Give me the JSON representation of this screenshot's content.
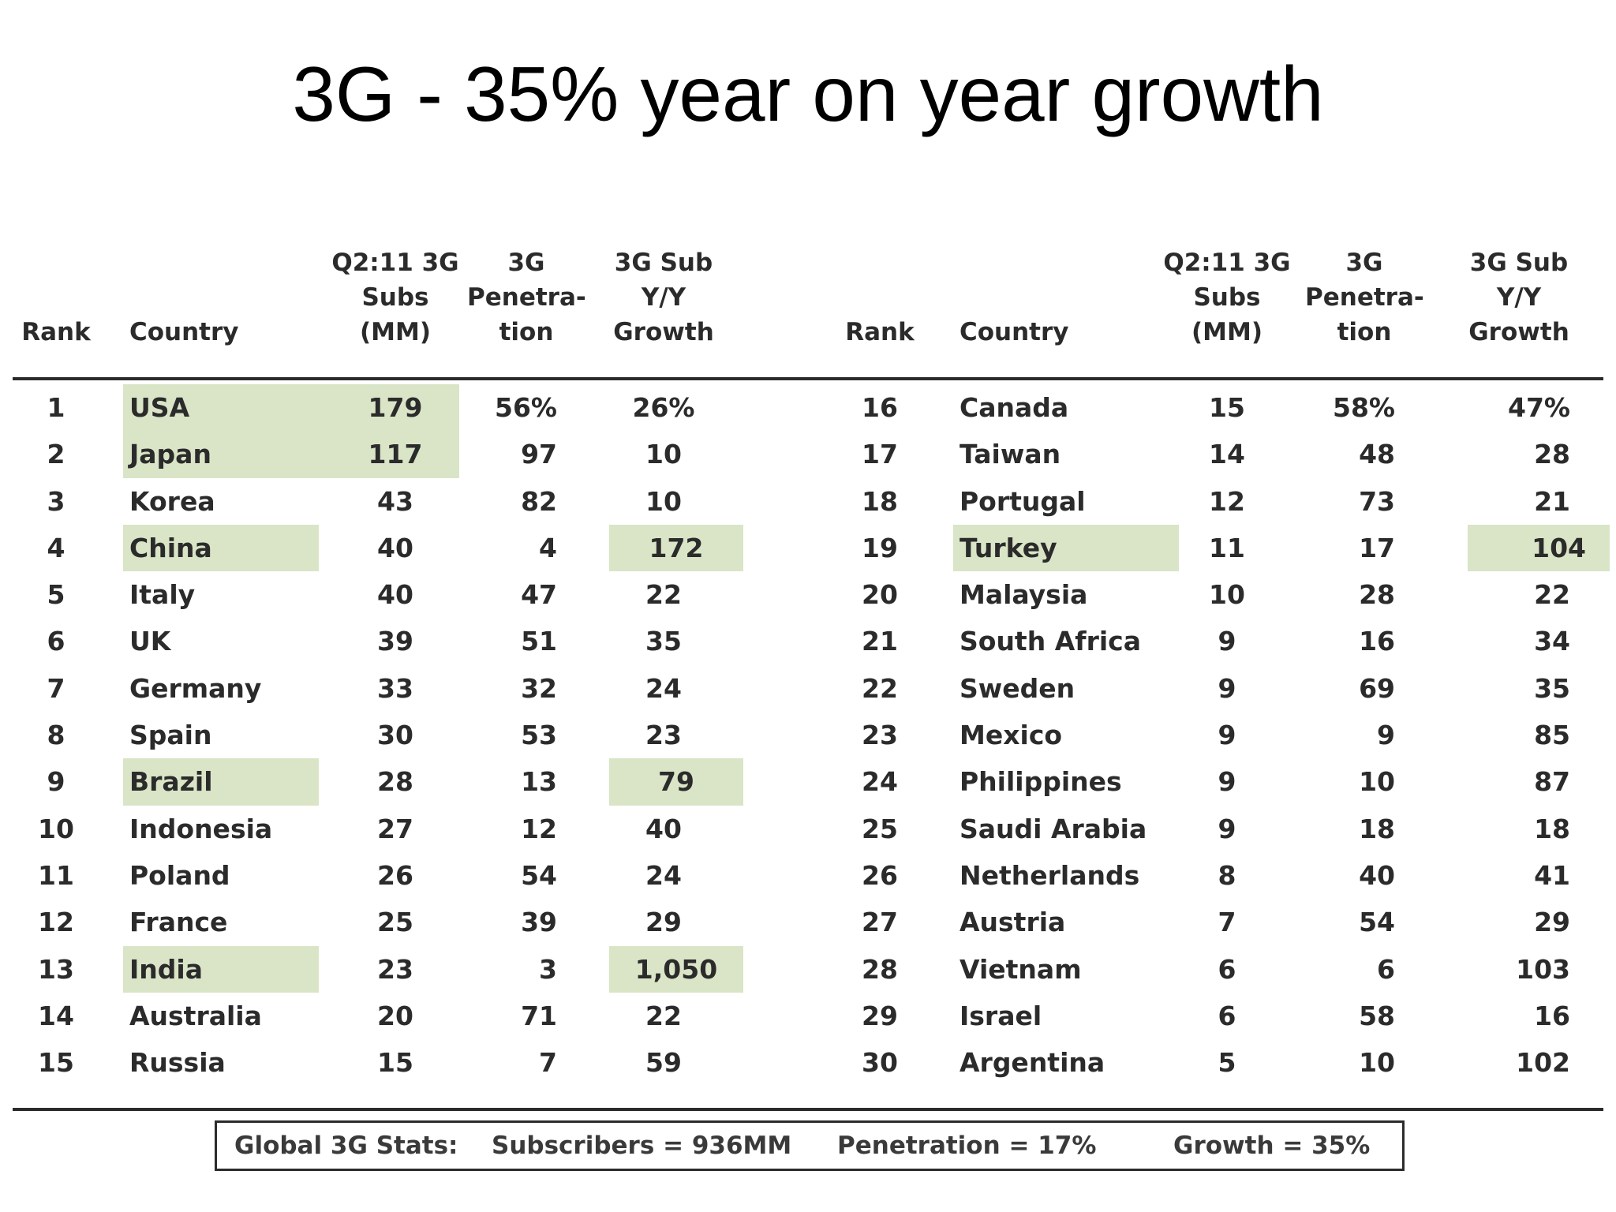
{
  "title": "3G - 35% year on year growth",
  "headers": {
    "rank": "Rank",
    "country": "Country",
    "subs": [
      "Q2:11 3G",
      "Subs",
      "(MM)"
    ],
    "penetration": [
      "3G",
      "Penetra-",
      "tion"
    ],
    "growth": [
      "3G Sub",
      "Y/Y",
      "Growth"
    ]
  },
  "left_rows": [
    {
      "rank": "1",
      "country": "USA",
      "subs": "179",
      "pen": "56%",
      "growth": "26%"
    },
    {
      "rank": "2",
      "country": "Japan",
      "subs": "117",
      "pen": "97",
      "growth": "10"
    },
    {
      "rank": "3",
      "country": "Korea",
      "subs": "43",
      "pen": "82",
      "growth": "10"
    },
    {
      "rank": "4",
      "country": "China",
      "subs": "40",
      "pen": "4",
      "growth": "172"
    },
    {
      "rank": "5",
      "country": "Italy",
      "subs": "40",
      "pen": "47",
      "growth": "22"
    },
    {
      "rank": "6",
      "country": "UK",
      "subs": "39",
      "pen": "51",
      "growth": "35"
    },
    {
      "rank": "7",
      "country": "Germany",
      "subs": "33",
      "pen": "32",
      "growth": "24"
    },
    {
      "rank": "8",
      "country": "Spain",
      "subs": "30",
      "pen": "53",
      "growth": "23"
    },
    {
      "rank": "9",
      "country": "Brazil",
      "subs": "28",
      "pen": "13",
      "growth": "79"
    },
    {
      "rank": "10",
      "country": "Indonesia",
      "subs": "27",
      "pen": "12",
      "growth": "40"
    },
    {
      "rank": "11",
      "country": "Poland",
      "subs": "26",
      "pen": "54",
      "growth": "24"
    },
    {
      "rank": "12",
      "country": "France",
      "subs": "25",
      "pen": "39",
      "growth": "29"
    },
    {
      "rank": "13",
      "country": "India",
      "subs": "23",
      "pen": "3",
      "growth": "1,050"
    },
    {
      "rank": "14",
      "country": "Australia",
      "subs": "20",
      "pen": "71",
      "growth": "22"
    },
    {
      "rank": "15",
      "country": "Russia",
      "subs": "15",
      "pen": "7",
      "growth": "59"
    }
  ],
  "right_rows": [
    {
      "rank": "16",
      "country": "Canada",
      "subs": "15",
      "pen": "58%",
      "growth": "47%"
    },
    {
      "rank": "17",
      "country": "Taiwan",
      "subs": "14",
      "pen": "48",
      "growth": "28"
    },
    {
      "rank": "18",
      "country": "Portugal",
      "subs": "12",
      "pen": "73",
      "growth": "21"
    },
    {
      "rank": "19",
      "country": "Turkey",
      "subs": "11",
      "pen": "17",
      "growth": "104"
    },
    {
      "rank": "20",
      "country": "Malaysia",
      "subs": "10",
      "pen": "28",
      "growth": "22"
    },
    {
      "rank": "21",
      "country": "South Africa",
      "subs": "9",
      "pen": "16",
      "growth": "34"
    },
    {
      "rank": "22",
      "country": "Sweden",
      "subs": "9",
      "pen": "69",
      "growth": "35"
    },
    {
      "rank": "23",
      "country": "Mexico",
      "subs": "9",
      "pen": "9",
      "growth": "85"
    },
    {
      "rank": "24",
      "country": "Philippines",
      "subs": "9",
      "pen": "10",
      "growth": "87"
    },
    {
      "rank": "25",
      "country": "Saudi Arabia",
      "subs": "9",
      "pen": "18",
      "growth": "18"
    },
    {
      "rank": "26",
      "country": "Netherlands",
      "subs": "8",
      "pen": "40",
      "growth": "41"
    },
    {
      "rank": "27",
      "country": "Austria",
      "subs": "7",
      "pen": "54",
      "growth": "29"
    },
    {
      "rank": "28",
      "country": "Vietnam",
      "subs": "6",
      "pen": "6",
      "growth": "103"
    },
    {
      "rank": "29",
      "country": "Israel",
      "subs": "6",
      "pen": "58",
      "growth": "16"
    },
    {
      "rank": "30",
      "country": "Argentina",
      "subs": "5",
      "pen": "10",
      "growth": "102"
    }
  ],
  "highlight_color": "#d9e5c6",
  "global_stats": {
    "label": "Global 3G Stats:",
    "subscribers": "Subscribers = 936MM",
    "penetration": "Penetration = 17%",
    "growth": "Growth = 35%"
  }
}
